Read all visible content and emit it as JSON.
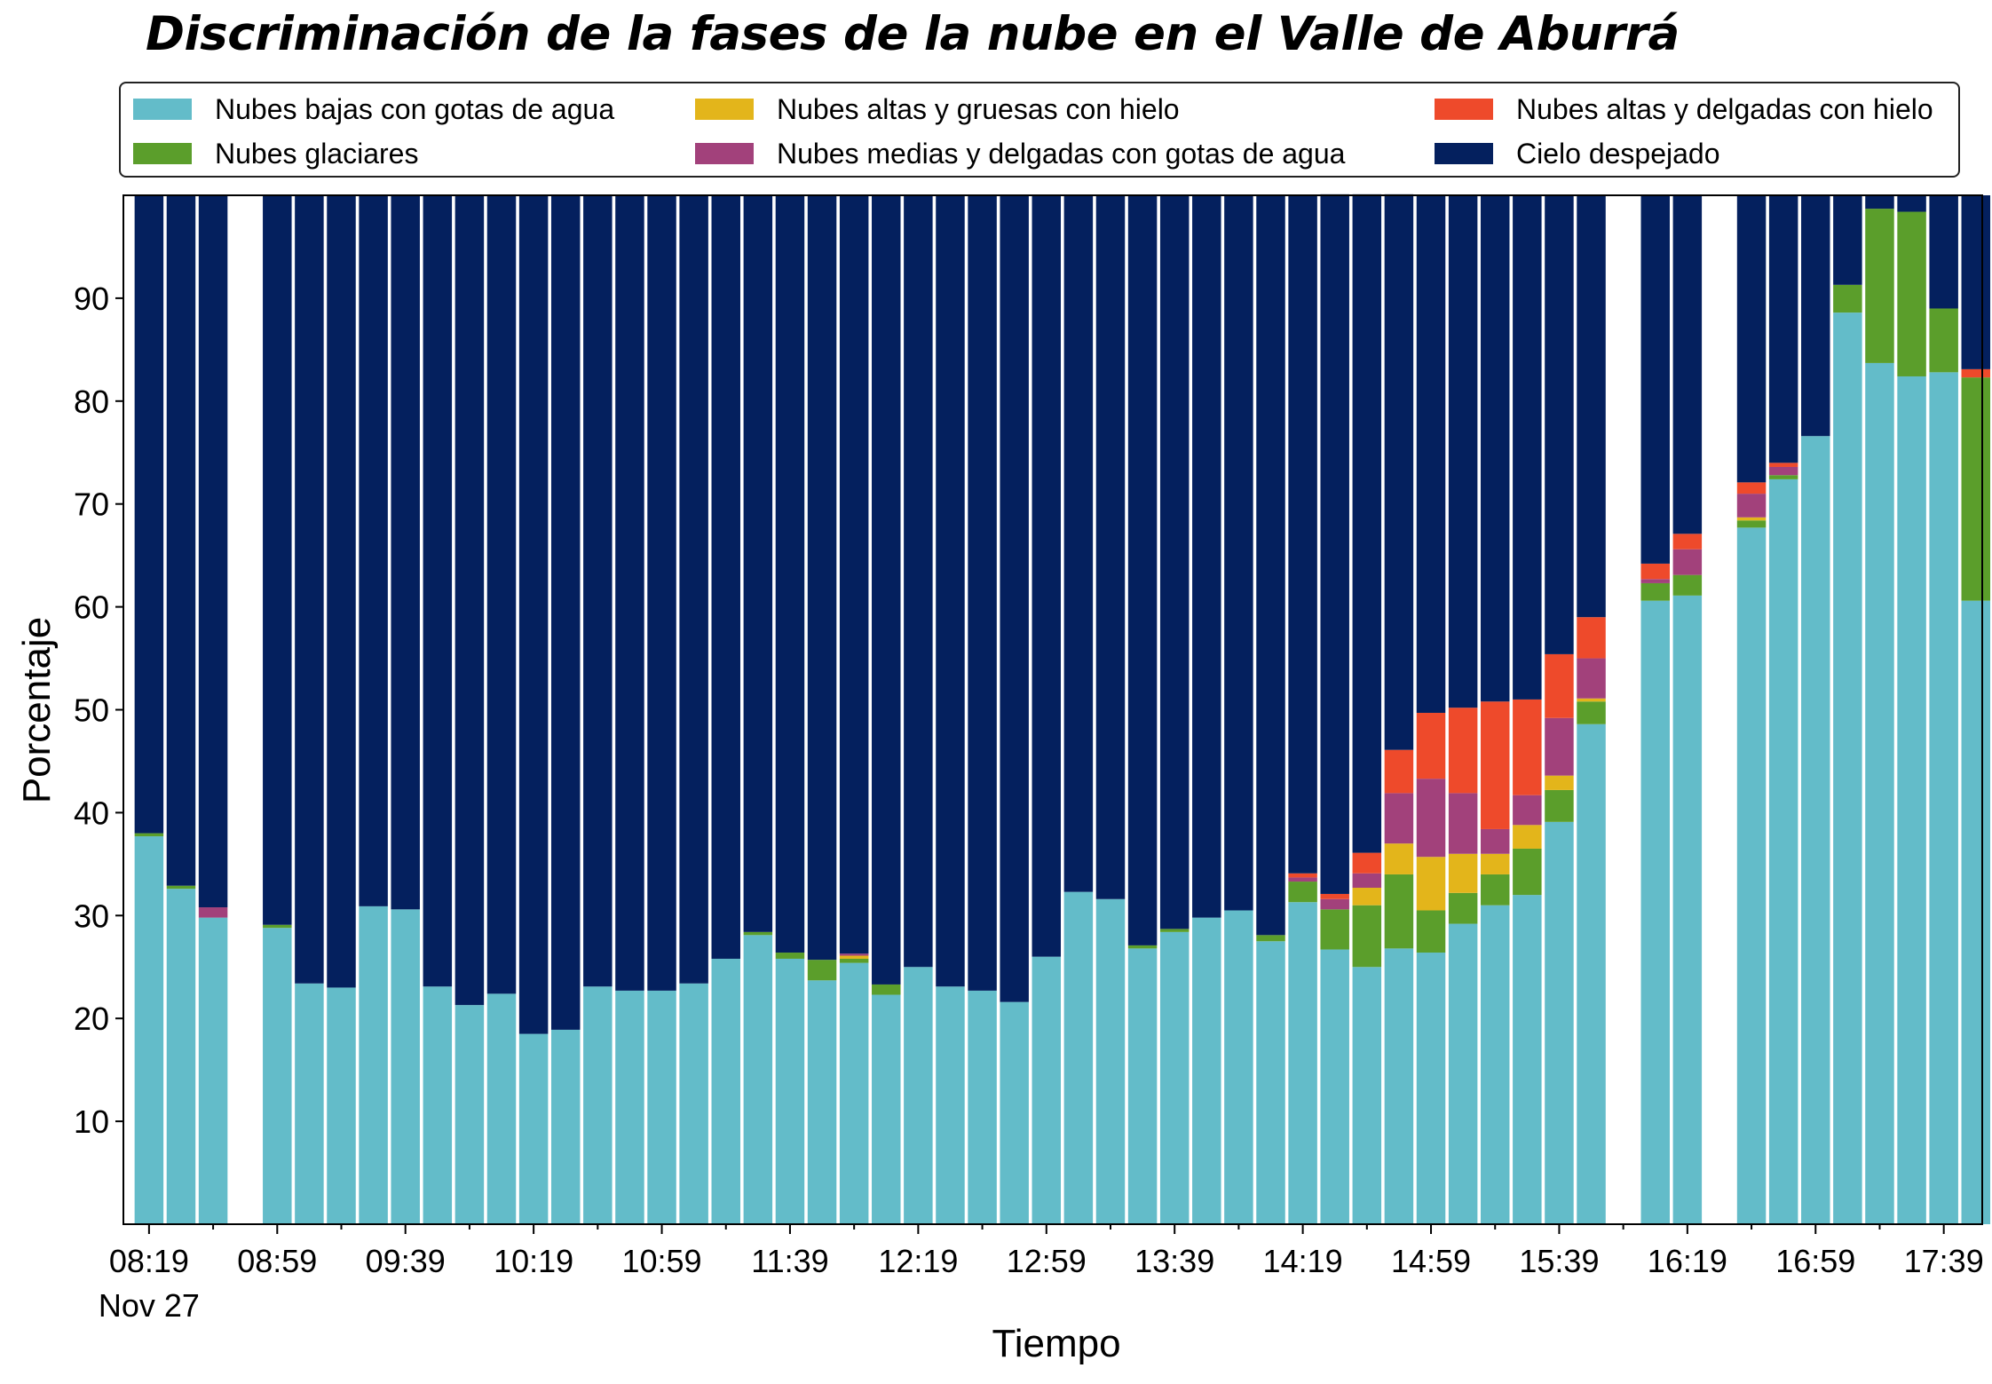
{
  "chart_data": {
    "type": "bar",
    "stacked": true,
    "title": "Discriminación de la fases de la nube en el Valle de Aburrá",
    "xlabel": "Tiempo",
    "ylabel": "Porcentaje",
    "ylim": [
      0,
      100
    ],
    "yticks": [
      10,
      20,
      30,
      40,
      50,
      60,
      70,
      80,
      90
    ],
    "xlim": [
      "08:11",
      "17:51"
    ],
    "date_label": "Nov 27",
    "grid": false,
    "legend_position": "top",
    "interval_minutes": 10,
    "x": [
      "08:19",
      "08:29",
      "08:39",
      "08:49",
      "08:59",
      "09:09",
      "09:19",
      "09:29",
      "09:39",
      "09:49",
      "09:59",
      "10:09",
      "10:19",
      "10:29",
      "10:39",
      "10:49",
      "10:59",
      "11:09",
      "11:19",
      "11:29",
      "11:39",
      "11:49",
      "11:59",
      "12:09",
      "12:19",
      "12:29",
      "12:39",
      "12:49",
      "12:59",
      "13:09",
      "13:19",
      "13:29",
      "13:39",
      "13:49",
      "13:59",
      "14:09",
      "14:19",
      "14:29",
      "14:39",
      "14:49",
      "14:59",
      "15:09",
      "15:19",
      "15:29",
      "15:39",
      "15:49",
      "15:59",
      "16:09",
      "16:19",
      "16:29",
      "16:39",
      "16:49",
      "16:59",
      "17:09",
      "17:19",
      "17:29",
      "17:39",
      "17:49"
    ],
    "x_ticks_major": [
      "08:19",
      "08:59",
      "09:39",
      "10:19",
      "10:59",
      "11:39",
      "12:19",
      "12:59",
      "13:39",
      "14:19",
      "14:59",
      "15:39",
      "16:19",
      "16:59",
      "17:39"
    ],
    "series": [
      {
        "name": "Nubes bajas con gotas de agua",
        "color": "#63bcc9",
        "values": [
          37.7,
          32.6,
          29.8,
          null,
          28.8,
          23.4,
          23.0,
          30.9,
          30.6,
          23.1,
          21.3,
          22.4,
          18.5,
          18.9,
          23.1,
          22.7,
          22.7,
          23.4,
          25.8,
          28.1,
          25.8,
          23.7,
          25.4,
          22.3,
          25.0,
          23.1,
          22.7,
          21.6,
          26.0,
          32.3,
          31.6,
          26.8,
          28.4,
          29.8,
          30.5,
          27.5,
          31.3,
          26.7,
          25.0,
          26.8,
          26.4,
          29.2,
          31.0,
          32.0,
          39.1,
          48.6,
          null,
          60.6,
          61.1,
          null,
          67.7,
          72.4,
          76.6,
          88.6,
          83.7,
          82.4,
          82.8,
          60.6
        ]
      },
      {
        "name": "Nubes glaciares",
        "color": "#5b9e2b",
        "values": [
          0.3,
          0.3,
          0,
          null,
          0.3,
          0,
          0,
          0,
          0,
          0,
          0,
          0,
          0,
          0,
          0,
          0,
          0,
          0,
          0,
          0.3,
          0.6,
          2.0,
          0.4,
          1.0,
          0,
          0,
          0,
          0,
          0,
          0,
          0,
          0.3,
          0.3,
          0,
          0,
          0.6,
          2.0,
          3.9,
          6.0,
          7.2,
          4.1,
          3.0,
          3.0,
          4.5,
          3.1,
          2.2,
          null,
          1.7,
          2.0,
          null,
          0.7,
          0.4,
          0,
          2.7,
          15.0,
          16.0,
          6.2,
          21.7
        ]
      },
      {
        "name": "Nubes altas y gruesas con hielo",
        "color": "#e3b51b",
        "values": [
          0,
          0,
          0,
          null,
          0,
          0,
          0,
          0,
          0,
          0,
          0,
          0,
          0,
          0,
          0,
          0,
          0,
          0,
          0,
          0,
          0,
          0,
          0.3,
          0,
          0,
          0,
          0,
          0,
          0,
          0,
          0,
          0,
          0,
          0,
          0,
          0,
          0,
          0,
          1.7,
          3.0,
          5.2,
          3.8,
          2.0,
          2.3,
          1.4,
          0.3,
          null,
          0,
          0,
          null,
          0.3,
          0,
          0,
          0,
          0,
          0,
          0,
          0
        ]
      },
      {
        "name": "Nubes medias y delgadas con gotas de agua",
        "color": "#a2417b",
        "values": [
          0,
          0,
          1.0,
          null,
          0,
          0,
          0,
          0,
          0,
          0,
          0,
          0,
          0,
          0,
          0,
          0,
          0,
          0,
          0,
          0,
          0,
          0,
          0.2,
          0,
          0,
          0,
          0,
          0,
          0,
          0,
          0,
          0,
          0,
          0,
          0,
          0,
          0.4,
          1.0,
          1.4,
          4.9,
          7.6,
          5.9,
          2.4,
          2.9,
          5.6,
          3.9,
          null,
          0.4,
          2.5,
          null,
          2.3,
          0.8,
          0,
          0,
          0,
          0,
          0,
          0
        ]
      },
      {
        "name": "Nubes altas y delgadas con hielo",
        "color": "#ee4a2b",
        "values": [
          0,
          0,
          0,
          null,
          0,
          0,
          0,
          0,
          0,
          0,
          0,
          0,
          0,
          0,
          0,
          0,
          0,
          0,
          0,
          0,
          0,
          0,
          0,
          0,
          0,
          0,
          0,
          0,
          0,
          0,
          0,
          0,
          0,
          0,
          0,
          0,
          0.4,
          0.5,
          2.0,
          4.2,
          6.4,
          8.3,
          12.4,
          9.3,
          6.2,
          4.0,
          null,
          1.5,
          1.5,
          null,
          1.1,
          0.4,
          0,
          0,
          0,
          0,
          0,
          0.8
        ]
      },
      {
        "name": "Cielo despejado",
        "color": "#04205e",
        "values": [
          62.0,
          67.1,
          69.2,
          null,
          70.9,
          76.6,
          77.0,
          69.1,
          69.4,
          76.9,
          78.7,
          77.6,
          81.5,
          81.1,
          76.9,
          77.3,
          77.3,
          76.6,
          74.2,
          71.6,
          73.6,
          74.3,
          73.7,
          76.7,
          75.0,
          76.9,
          77.3,
          78.4,
          74.0,
          67.7,
          68.4,
          72.9,
          71.3,
          70.2,
          69.5,
          71.9,
          65.9,
          68.0,
          64.0,
          54.0,
          50.3,
          49.8,
          49.2,
          49.0,
          44.6,
          41.0,
          null,
          35.8,
          32.9,
          null,
          27.9,
          26.0,
          23.4,
          8.7,
          1.3,
          1.6,
          11.0,
          16.9
        ]
      }
    ]
  }
}
